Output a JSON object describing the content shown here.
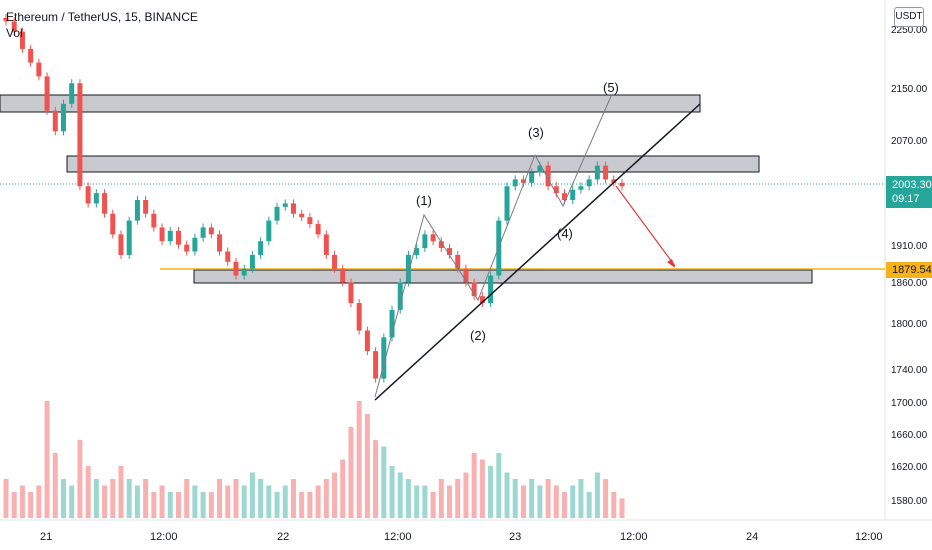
{
  "header": {
    "symbol": "Ethereum / TetherUS, 15, BINANCE",
    "vol_label": "Vol"
  },
  "price_axis": {
    "unit": "USDT",
    "labels": [
      "2250.00",
      "2150.00",
      "2070.00",
      "1910.00",
      "1860.00",
      "1800.00",
      "1740.00",
      "1700.00",
      "1660.00",
      "1620.00",
      "1580.00"
    ]
  },
  "time_axis": {
    "labels": [
      "21",
      "12:00",
      "22",
      "12:00",
      "23",
      "12:00",
      "24",
      "12:00"
    ]
  },
  "current_price": {
    "value": "2003.30",
    "countdown": "09:17"
  },
  "level_price": "1879.54",
  "wave_labels": [
    "(1)",
    "(2)",
    "(3)",
    "(4)",
    "(5)"
  ],
  "colors": {
    "up": "#26a69a",
    "down": "#ef5350",
    "zone_fill": "#c9cacf",
    "zone_border": "#131722",
    "level_line": "#f7b21a",
    "trendline": "#131722",
    "arrow": "#e53935"
  },
  "chart_data": {
    "type": "candlestick",
    "series": [
      {
        "name": "",
        "close": [
          2240,
          2225,
          2200,
          2180,
          2160,
          2110,
          2080,
          2120,
          2150,
          2000,
          1975,
          1990,
          1960,
          1930,
          1900,
          1950,
          1980,
          1960,
          1940,
          1920,
          1935,
          1915,
          1905,
          1925,
          1940,
          1930,
          1905,
          1890,
          1870,
          1880,
          1900,
          1920,
          1950,
          1970,
          1975,
          1960,
          1955,
          1945,
          1930,
          1900,
          1880,
          1860,
          1830,
          1790,
          1760,
          1720,
          1780,
          1820,
          1860,
          1900,
          1910,
          1930,
          1920,
          1910,
          1900,
          1880,
          1860,
          1840,
          1830,
          1870,
          1950,
          2000,
          2010,
          2005,
          2020,
          2030,
          2000,
          1990,
          1980,
          1995,
          2000,
          2010,
          2030,
          2010,
          2005,
          2000
        ]
      }
    ],
    "volume_relative": [
      0.3,
      0.2,
      0.25,
      0.2,
      0.25,
      0.9,
      0.5,
      0.3,
      0.25,
      0.6,
      0.4,
      0.3,
      0.25,
      0.3,
      0.4,
      0.3,
      0.25,
      0.3,
      0.2,
      0.25,
      0.2,
      0.2,
      0.3,
      0.25,
      0.2,
      0.2,
      0.3,
      0.25,
      0.3,
      0.25,
      0.35,
      0.3,
      0.25,
      0.2,
      0.25,
      0.3,
      0.2,
      0.2,
      0.25,
      0.3,
      0.35,
      0.45,
      0.7,
      0.9,
      0.8,
      0.6,
      0.55,
      0.4,
      0.35,
      0.3,
      0.25,
      0.25,
      0.2,
      0.3,
      0.25,
      0.3,
      0.35,
      0.5,
      0.45,
      0.4,
      0.5,
      0.35,
      0.3,
      0.25,
      0.3,
      0.25,
      0.3,
      0.25,
      0.2,
      0.25,
      0.3,
      0.2,
      0.35,
      0.3,
      0.2,
      0.15
    ],
    "zones": [
      {
        "from": 2125,
        "to": 2150
      },
      {
        "from": 2020,
        "to": 2045
      },
      {
        "from": 1865,
        "to": 1880
      }
    ],
    "horizontal_level": 1879.54,
    "elliott_wave_points": [
      {
        "label": "(1)",
        "price": 1940
      },
      {
        "label": "(2)",
        "price": 1825
      },
      {
        "label": "(3)",
        "price": 2050
      },
      {
        "label": "(4)",
        "price": 1985
      },
      {
        "label": "(5)",
        "price": 2150
      }
    ],
    "target_price": 1879.54
  }
}
